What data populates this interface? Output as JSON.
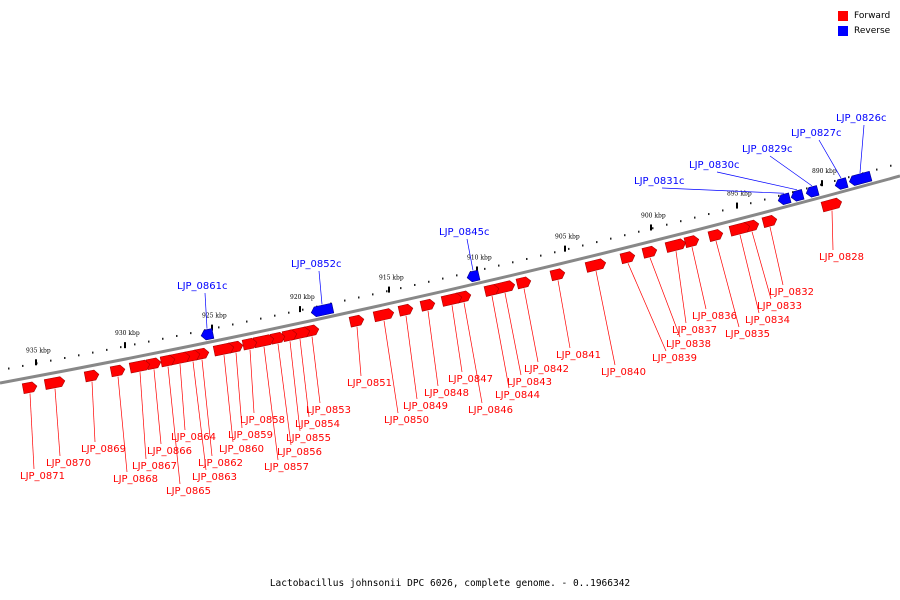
{
  "caption": "Lactobacillus johnsonii DPC 6026, complete genome. - 0..1966342",
  "legend": [
    {
      "label": "Forward",
      "color": "#ff0000"
    },
    {
      "label": "Reverse",
      "color": "#0000ff"
    }
  ],
  "colors": {
    "forward": "#ff0000",
    "reverse": "#0000ff"
  },
  "ticks": [
    "890 kbp",
    "895 kbp",
    "900 kbp",
    "905 kbp",
    "910 kbp",
    "915 kbp",
    "920 kbp",
    "925 kbp",
    "930 kbp",
    "935 kbp"
  ],
  "forward_genes": [
    "LJP_0828",
    "LJP_0832",
    "LJP_0833",
    "LJP_0834",
    "LJP_0835",
    "LJP_0836",
    "LJP_0837",
    "LJP_0838",
    "LJP_0839",
    "LJP_0840",
    "LJP_0841",
    "LJP_0842",
    "LJP_0843",
    "LJP_0844",
    "LJP_0846",
    "LJP_0847",
    "LJP_0848",
    "LJP_0849",
    "LJP_0850",
    "LJP_0851",
    "LJP_0853",
    "LJP_0854",
    "LJP_0855",
    "LJP_0856",
    "LJP_0857",
    "LJP_0858",
    "LJP_0859",
    "LJP_0860",
    "LJP_0862",
    "LJP_0863",
    "LJP_0864",
    "LJP_0865",
    "LJP_0866",
    "LJP_0867",
    "LJP_0868",
    "LJP_0869",
    "LJP_0870",
    "LJP_0871"
  ],
  "reverse_genes": [
    "LJP_0826c",
    "LJP_0827c",
    "LJP_0829c",
    "LJP_0830c",
    "LJP_0831c",
    "LJP_0845c",
    "LJP_0852c",
    "LJP_0861c"
  ]
}
